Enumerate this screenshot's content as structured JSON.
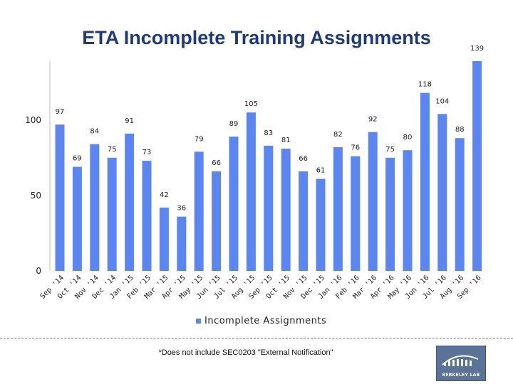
{
  "title": "ETA Incomplete Training Assignments",
  "footnote": "*Does not include SEC0203 \"External Notification\"",
  "logo": {
    "name": "BERKELEY LAB"
  },
  "colors": {
    "bar": "#5b86f0",
    "title": "#1f3a7a"
  },
  "chart_data": {
    "type": "bar",
    "categories": [
      "Sep '14",
      "Oct '14",
      "Nov '14",
      "Dec '14",
      "Jan '15",
      "Feb '15",
      "Mar '15",
      "Apr '15",
      "May '15",
      "Jun '15",
      "Jul '15",
      "Aug '15",
      "Sep '15",
      "Oct '15",
      "Nov '15",
      "Dec '15",
      "Jan '16",
      "Feb '16",
      "Mar '16",
      "Apr '16",
      "May '16",
      "Jun '16",
      "Jul '16",
      "Aug '16",
      "Sep '16"
    ],
    "series": [
      {
        "name": "Incomplete Assignments",
        "values": [
          97,
          69,
          84,
          75,
          91,
          73,
          42,
          36,
          79,
          66,
          89,
          105,
          83,
          81,
          66,
          61,
          82,
          76,
          92,
          75,
          80,
          118,
          104,
          88,
          139
        ]
      }
    ],
    "ylim": [
      0,
      139
    ],
    "yticks": [
      0,
      50,
      100
    ],
    "legend": "bottom",
    "grid": false
  }
}
